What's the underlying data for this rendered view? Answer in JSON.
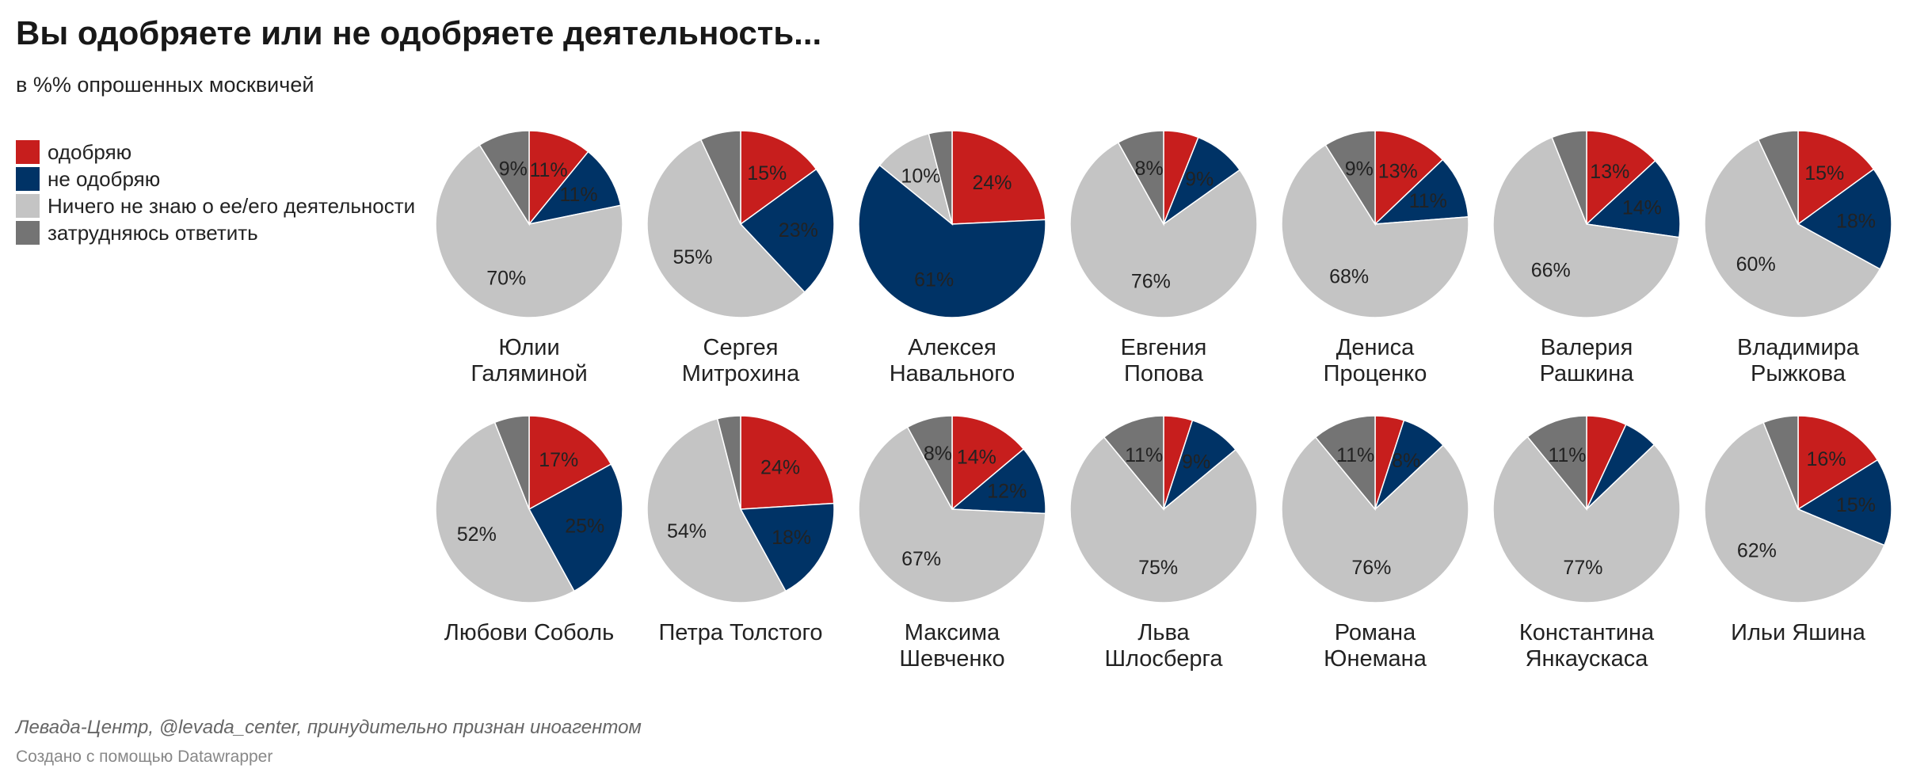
{
  "header": {
    "title": "Вы одобряете или не одобряете деятельность...",
    "subtitle": "в %% опрошенных москвичей"
  },
  "legend": [
    {
      "label": "одобряю",
      "color": "#c71e1d"
    },
    {
      "label": "не одобряю",
      "color": "#003366"
    },
    {
      "label": "Ничего не знаю о ее/его деятельности",
      "color": "#c4c4c4"
    },
    {
      "label": "затрудняюсь ответить",
      "color": "#747474"
    }
  ],
  "footer": {
    "source": "Левада-Центр, @levada_center, принудительно признан иноагентом",
    "credit": "Создано с помощью Datawrapper"
  },
  "chart_data": {
    "type": "pie",
    "series_names": [
      "одобряю",
      "не одобряю",
      "Ничего не знаю о ее/его деятельности",
      "затрудняюсь ответить"
    ],
    "colors": [
      "#c71e1d",
      "#003366",
      "#c4c4c4",
      "#747474"
    ],
    "pies": [
      {
        "name_lines": [
          "Юлии",
          "Галяминой"
        ],
        "values": [
          11,
          11,
          70,
          9
        ],
        "labels": [
          "11%",
          "11%",
          "70%",
          "9%"
        ]
      },
      {
        "name_lines": [
          "Сергея",
          "Митрохина"
        ],
        "values": [
          15,
          23,
          55,
          7
        ],
        "labels": [
          "15%",
          "23%",
          "55%",
          ""
        ]
      },
      {
        "name_lines": [
          "Алексея",
          "Навального"
        ],
        "values": [
          24,
          61,
          10,
          4
        ],
        "labels": [
          "24%",
          "61%",
          "10%",
          ""
        ]
      },
      {
        "name_lines": [
          "Евгения",
          "Попова"
        ],
        "values": [
          6,
          9,
          76,
          8
        ],
        "labels": [
          "",
          "9%",
          "76%",
          "8%"
        ]
      },
      {
        "name_lines": [
          "Дениса",
          "Проценко"
        ],
        "values": [
          13,
          11,
          68,
          9
        ],
        "labels": [
          "13%",
          "11%",
          "68%",
          "9%"
        ]
      },
      {
        "name_lines": [
          "Валерия",
          "Рашкина"
        ],
        "values": [
          13,
          14,
          66,
          6
        ],
        "labels": [
          "13%",
          "14%",
          "66%",
          ""
        ]
      },
      {
        "name_lines": [
          "Владимира",
          "Рыжкова"
        ],
        "values": [
          15,
          18,
          60,
          7
        ],
        "labels": [
          "15%",
          "18%",
          "60%",
          ""
        ]
      },
      {
        "name_lines": [
          "Любови Соболь"
        ],
        "values": [
          17,
          25,
          52,
          6
        ],
        "labels": [
          "17%",
          "25%",
          "52%",
          ""
        ]
      },
      {
        "name_lines": [
          "Петра Толстого"
        ],
        "values": [
          24,
          18,
          54,
          4
        ],
        "labels": [
          "24%",
          "18%",
          "54%",
          ""
        ]
      },
      {
        "name_lines": [
          "Максима",
          "Шевченко"
        ],
        "values": [
          14,
          12,
          67,
          8
        ],
        "labels": [
          "14%",
          "12%",
          "67%",
          "8%"
        ]
      },
      {
        "name_lines": [
          "Льва",
          "Шлосберга"
        ],
        "values": [
          5,
          9,
          75,
          11
        ],
        "labels": [
          "",
          "9%",
          "75%",
          "11%"
        ]
      },
      {
        "name_lines": [
          "Романа",
          "Юнемана"
        ],
        "values": [
          5,
          8,
          76,
          11
        ],
        "labels": [
          "",
          "8%",
          "76%",
          "11%"
        ]
      },
      {
        "name_lines": [
          "Константина",
          "Янкаускаса"
        ],
        "values": [
          7,
          6,
          77,
          11
        ],
        "labels": [
          "",
          "",
          "77%",
          "11%"
        ]
      },
      {
        "name_lines": [
          "Ильи Яшина"
        ],
        "values": [
          16,
          15,
          62,
          6
        ],
        "labels": [
          "16%",
          "15%",
          "62%",
          ""
        ]
      }
    ]
  }
}
